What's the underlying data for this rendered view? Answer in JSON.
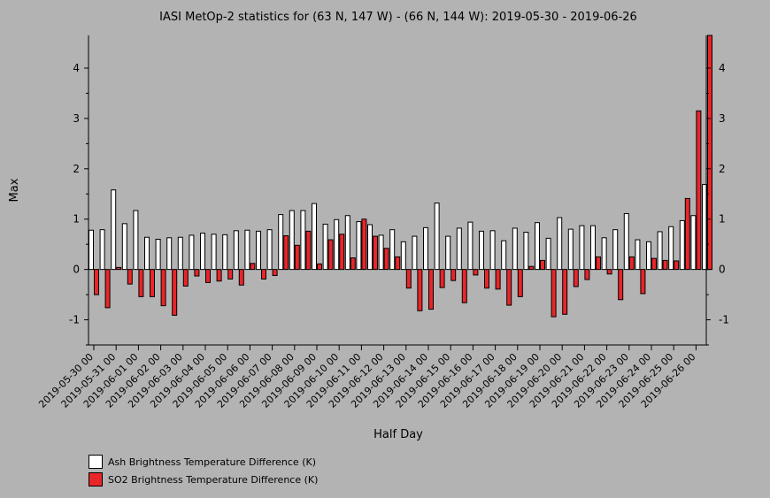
{
  "chart_data": {
    "type": "bar",
    "title": "IASI MetOp-2 statistics for (63 N, 147 W) - (66 N, 144 W): 2019-05-30 - 2019-06-26",
    "xlabel": "Half Day",
    "ylabel": "Max",
    "ylim": [
      -1.5,
      4.65
    ],
    "y_ticks": [
      -1,
      0,
      1,
      2,
      3,
      4
    ],
    "x_ticks": [
      "2019-05-30 00",
      "2019-05-31 00",
      "2019-06-01 00",
      "2019-06-02 00",
      "2019-06-03 00",
      "2019-06-04 00",
      "2019-06-05 00",
      "2019-06-06 00",
      "2019-06-07 00",
      "2019-06-08 00",
      "2019-06-09 00",
      "2019-06-10 00",
      "2019-06-11 00",
      "2019-06-12 00",
      "2019-06-13 00",
      "2019-06-14 00",
      "2019-06-15 00",
      "2019-06-16 00",
      "2019-06-17 00",
      "2019-06-18 00",
      "2019-06-19 00",
      "2019-06-20 00",
      "2019-06-21 00",
      "2019-06-22 00",
      "2019-06-23 00",
      "2019-06-24 00",
      "2019-06-25 00",
      "2019-06-26 00"
    ],
    "categories": [
      "2019-05-30 00",
      "2019-05-30 12",
      "2019-05-31 00",
      "2019-05-31 12",
      "2019-06-01 00",
      "2019-06-01 12",
      "2019-06-02 00",
      "2019-06-02 12",
      "2019-06-03 00",
      "2019-06-03 12",
      "2019-06-04 00",
      "2019-06-04 12",
      "2019-06-05 00",
      "2019-06-05 12",
      "2019-06-06 00",
      "2019-06-06 12",
      "2019-06-07 00",
      "2019-06-07 12",
      "2019-06-08 00",
      "2019-06-08 12",
      "2019-06-09 00",
      "2019-06-09 12",
      "2019-06-10 00",
      "2019-06-10 12",
      "2019-06-11 00",
      "2019-06-11 12",
      "2019-06-12 00",
      "2019-06-12 12",
      "2019-06-13 00",
      "2019-06-13 12",
      "2019-06-14 00",
      "2019-06-14 12",
      "2019-06-15 00",
      "2019-06-15 12",
      "2019-06-16 00",
      "2019-06-16 12",
      "2019-06-17 00",
      "2019-06-17 12",
      "2019-06-18 00",
      "2019-06-18 12",
      "2019-06-19 00",
      "2019-06-19 12",
      "2019-06-20 00",
      "2019-06-20 12",
      "2019-06-21 00",
      "2019-06-21 12",
      "2019-06-22 00",
      "2019-06-22 12",
      "2019-06-23 00",
      "2019-06-23 12",
      "2019-06-24 00",
      "2019-06-24 12",
      "2019-06-25 00",
      "2019-06-25 12",
      "2019-06-26 00",
      "2019-06-26 12"
    ],
    "series": [
      {
        "name": "Ash Brightness Temperature Difference (K)",
        "color": "#ffffff",
        "values": [
          0.78,
          0.79,
          1.58,
          0.91,
          1.17,
          0.64,
          0.6,
          0.63,
          0.64,
          0.68,
          0.72,
          0.7,
          0.69,
          0.77,
          0.78,
          0.76,
          0.79,
          1.09,
          1.17,
          1.17,
          1.31,
          0.9,
          0.99,
          1.07,
          0.95,
          0.89,
          0.68,
          0.79,
          0.55,
          0.66,
          0.83,
          1.32,
          0.66,
          0.82,
          0.94,
          0.76,
          0.77,
          0.57,
          0.82,
          0.74,
          0.93,
          0.62,
          1.03,
          0.8,
          0.87,
          0.87,
          0.63,
          0.79,
          1.11,
          0.59,
          0.55,
          0.75,
          0.85,
          0.97,
          1.07,
          1.69
        ]
      },
      {
        "name": "SO2 Brightness Temperature Difference (K)",
        "color": "#e8262a",
        "values": [
          -0.5,
          -0.76,
          0.04,
          -0.29,
          -0.54,
          -0.54,
          -0.72,
          -0.91,
          -0.33,
          -0.13,
          -0.26,
          -0.23,
          -0.19,
          -0.31,
          0.12,
          -0.19,
          -0.12,
          0.67,
          0.48,
          0.76,
          0.11,
          0.59,
          0.7,
          0.23,
          1.0,
          0.66,
          0.42,
          0.25,
          -0.37,
          -0.82,
          -0.79,
          -0.36,
          -0.22,
          -0.66,
          -0.11,
          -0.37,
          -0.39,
          -0.71,
          -0.54,
          0.06,
          0.18,
          -0.94,
          -0.89,
          -0.34,
          -0.2,
          0.25,
          -0.09,
          -0.6,
          0.25,
          -0.48,
          0.22,
          0.18,
          0.17,
          1.41,
          3.15,
          4.65
        ]
      }
    ],
    "legend_position": "bottom-left",
    "grid": false
  }
}
